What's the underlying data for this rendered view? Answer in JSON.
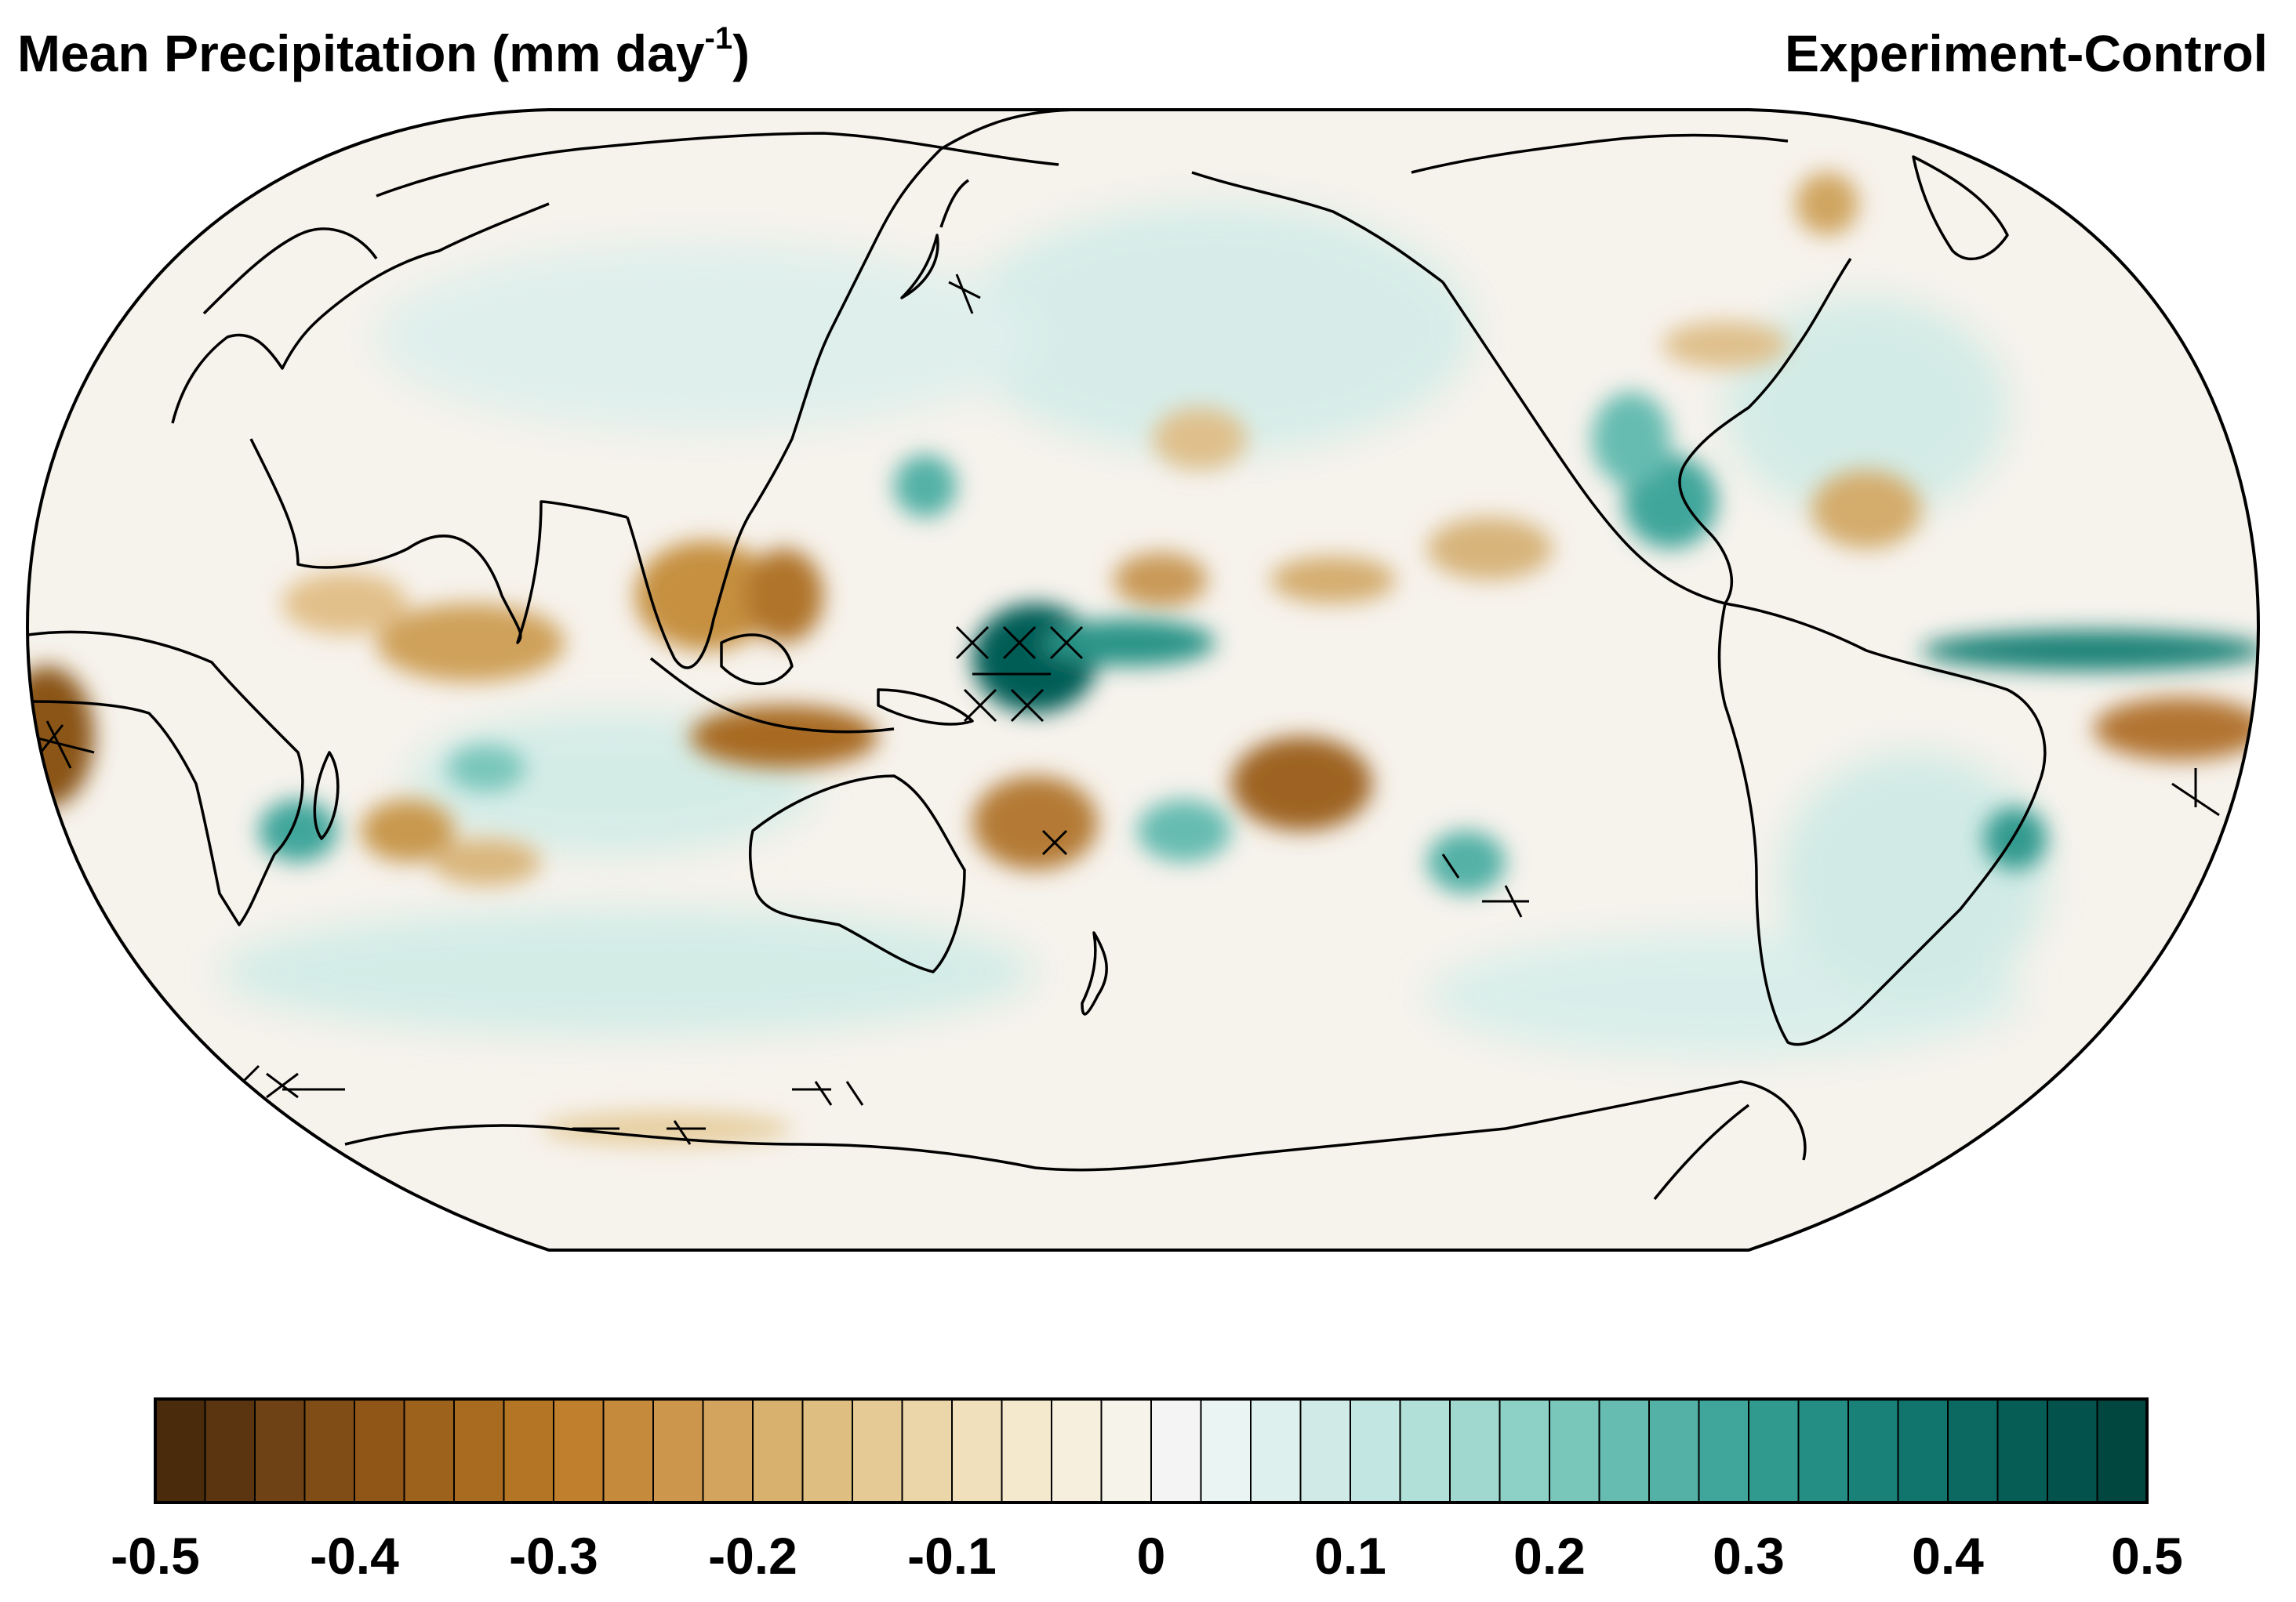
{
  "header": {
    "title_left_prefix": "Mean Precipitation (mm day",
    "title_left_sup": "-1",
    "title_left_suffix": ")",
    "title_right": "Experiment-Control"
  },
  "map": {
    "projection": "Robinson",
    "center_longitude": "180",
    "ocean_background": "#f6f2ec",
    "coastline_color": "#000000"
  },
  "colorbar": {
    "min": -0.5,
    "max": 0.5,
    "step": 0.025,
    "tick_labels": [
      "-0.5",
      "-0.4",
      "-0.3",
      "-0.2",
      "-0.1",
      "0",
      "0.1",
      "0.2",
      "0.3",
      "0.4",
      "0.5"
    ],
    "colors": [
      "#4a2b0c",
      "#5a3510",
      "#6e4214",
      "#804d16",
      "#8f5618",
      "#9d621c",
      "#a86b20",
      "#b47524",
      "#bf7f2d",
      "#c68a3c",
      "#cc974c",
      "#d3a45d",
      "#d9b16e",
      "#dfbe82",
      "#e5ca96",
      "#ebd6a9",
      "#f0e0bb",
      "#f4e9cd",
      "#f6efdd",
      "#f6f3ea",
      "#f3f4f3",
      "#eaf4f3",
      "#ddf0ee",
      "#d0ebe7",
      "#c2e6e1",
      "#b1e0d9",
      "#a0d8d0",
      "#8dd0c6",
      "#79c6bb",
      "#66bcb1",
      "#53b1a6",
      "#40a69b",
      "#309a8f",
      "#248e84",
      "#198178",
      "#12756d",
      "#0c6962",
      "#065d56",
      "#03524b",
      "#01463f"
    ]
  }
}
